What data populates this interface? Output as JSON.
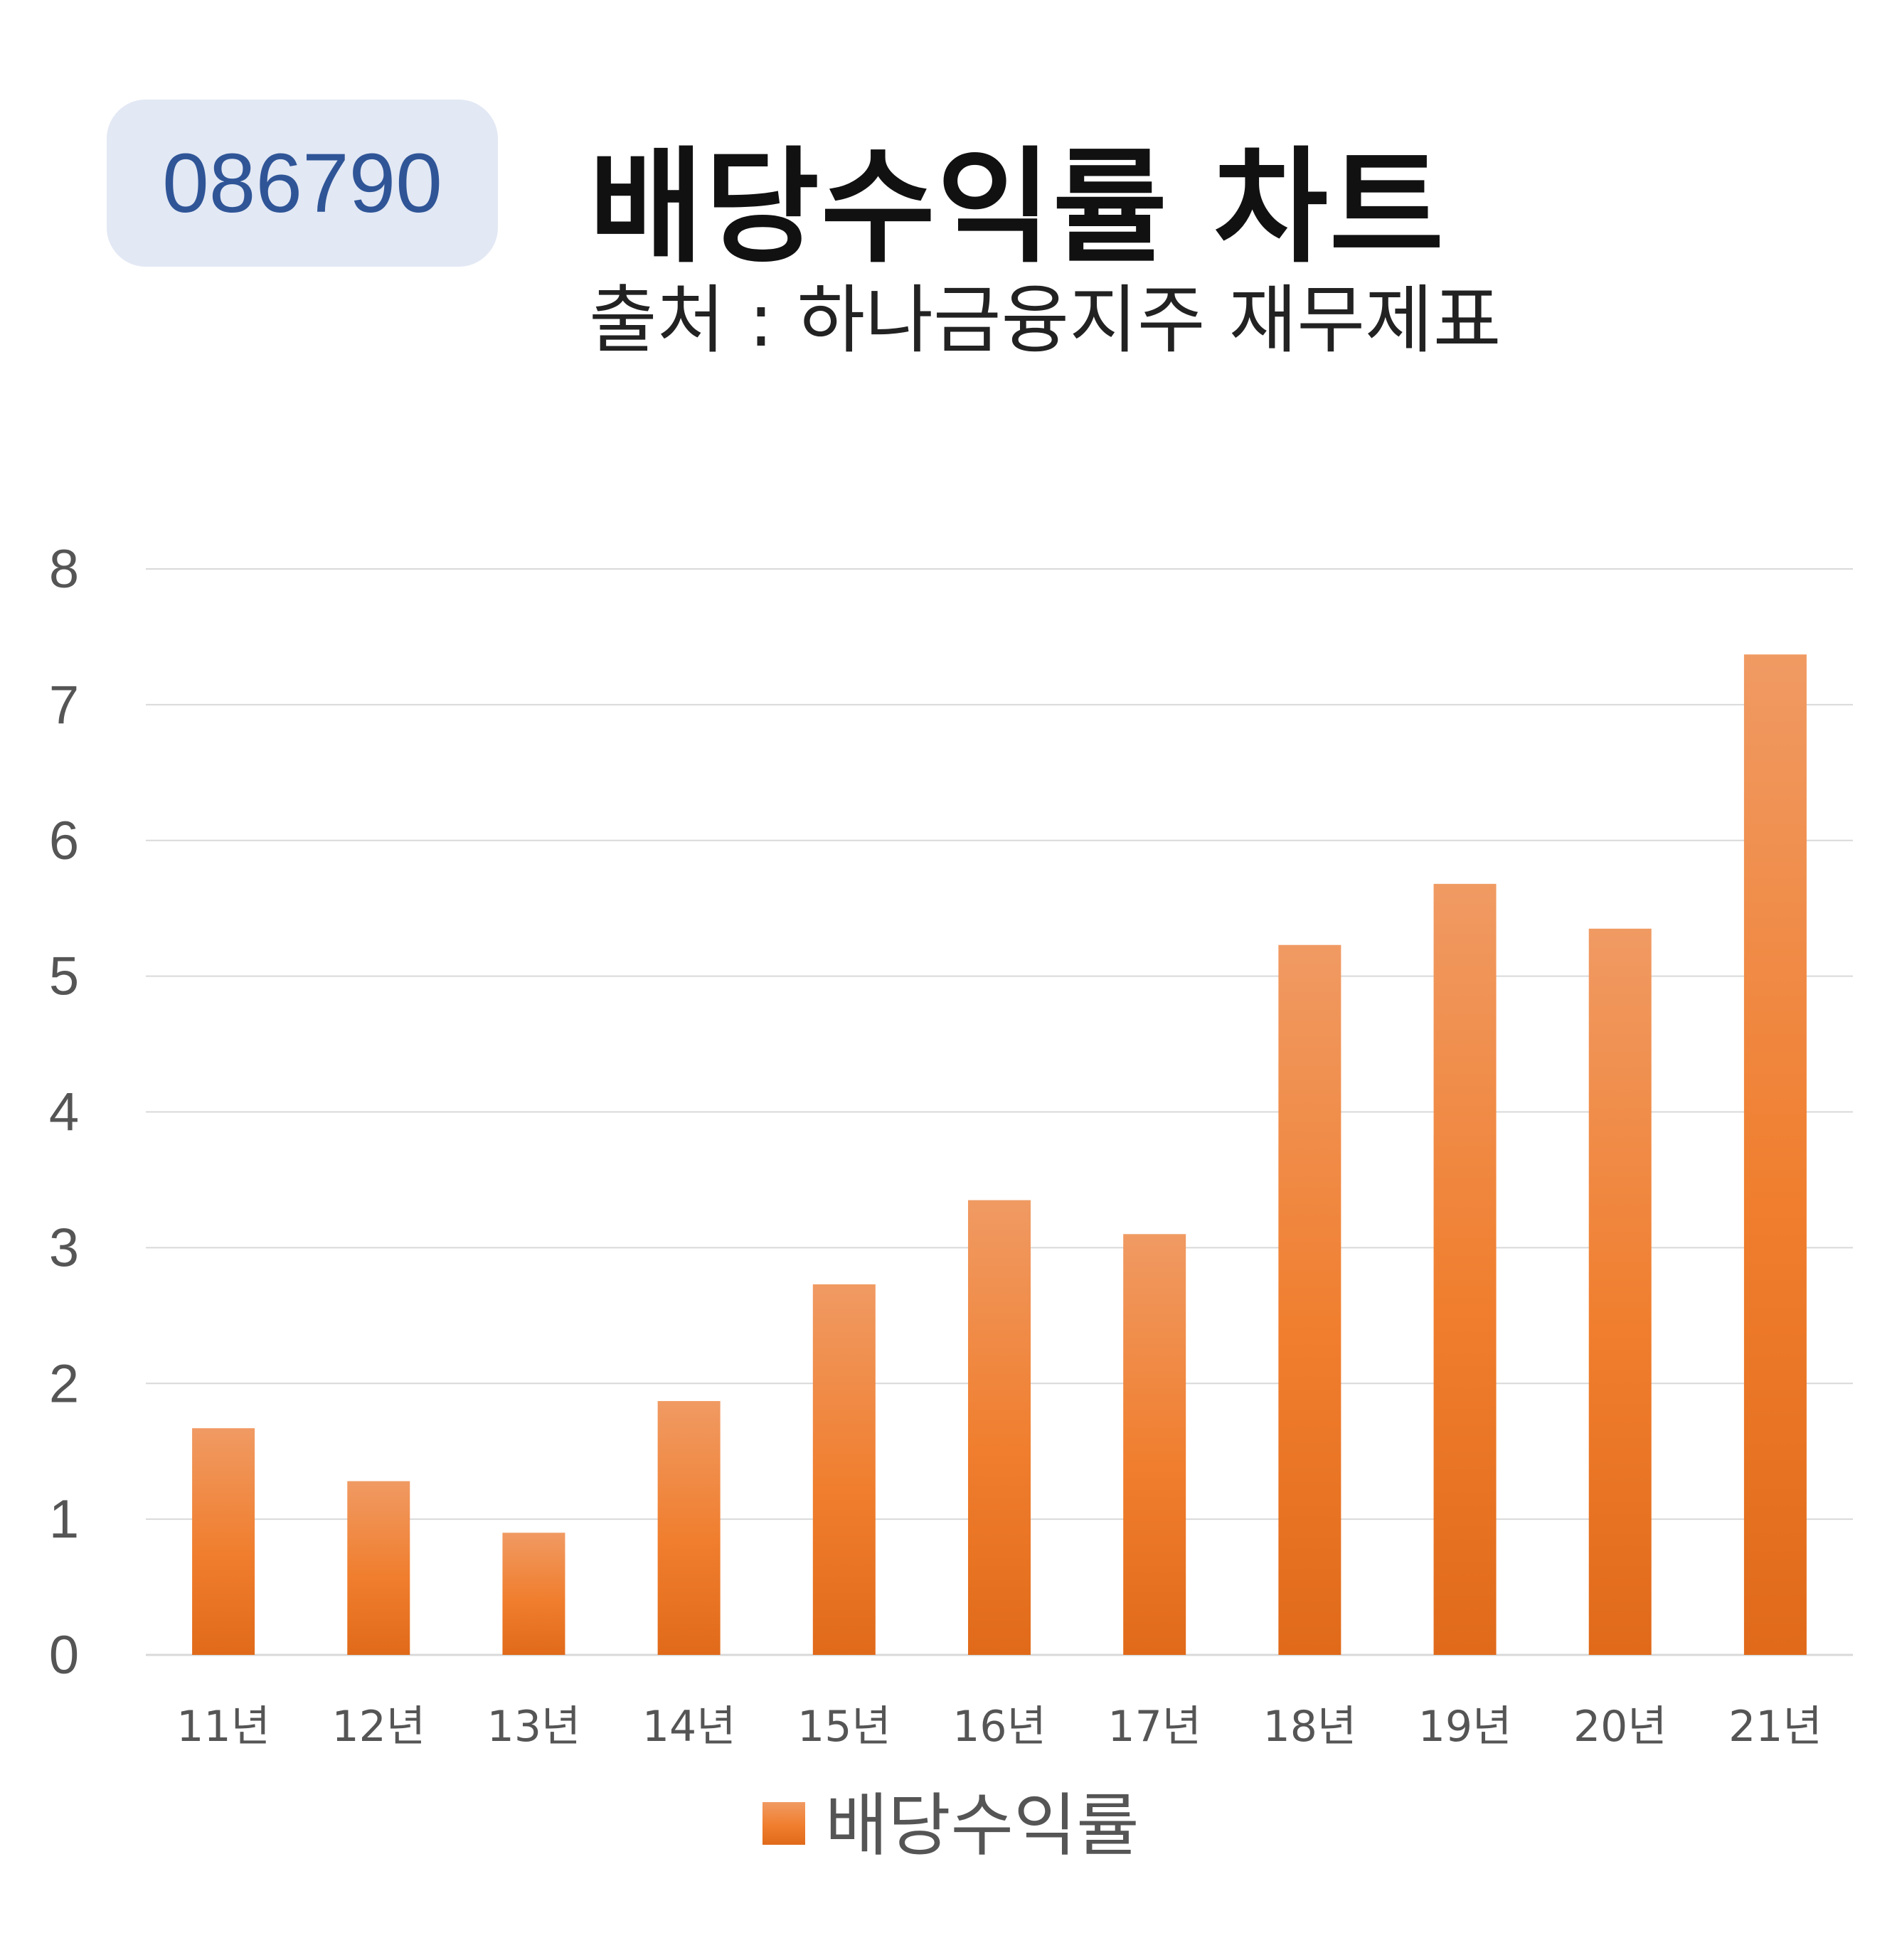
{
  "header": {
    "code": "086790",
    "title": "배당수익률 차트",
    "subtitle": "출처 : 하나금융지주 재무제표"
  },
  "colors": {
    "bar_top": "#f09a63",
    "bar_mid": "#f07e2e",
    "bar_bottom": "#e06a1a",
    "grid": "#d9d9d9",
    "badge_bg": "#e2e8f4",
    "badge_text": "#2f5597"
  },
  "chart_data": {
    "type": "bar",
    "categories": [
      "11년",
      "12년",
      "13년",
      "14년",
      "15년",
      "16년",
      "17년",
      "18년",
      "19년",
      "20년",
      "21년"
    ],
    "series": [
      {
        "name": "배당수익률",
        "values": [
          1.67,
          1.28,
          0.9,
          1.87,
          2.73,
          3.35,
          3.1,
          5.23,
          5.68,
          5.35,
          7.37
        ]
      }
    ],
    "ylim": [
      0,
      8
    ],
    "yticks": [
      0,
      1,
      2,
      3,
      4,
      5,
      6,
      7,
      8
    ],
    "grid": true,
    "legend": "bottom-center"
  }
}
